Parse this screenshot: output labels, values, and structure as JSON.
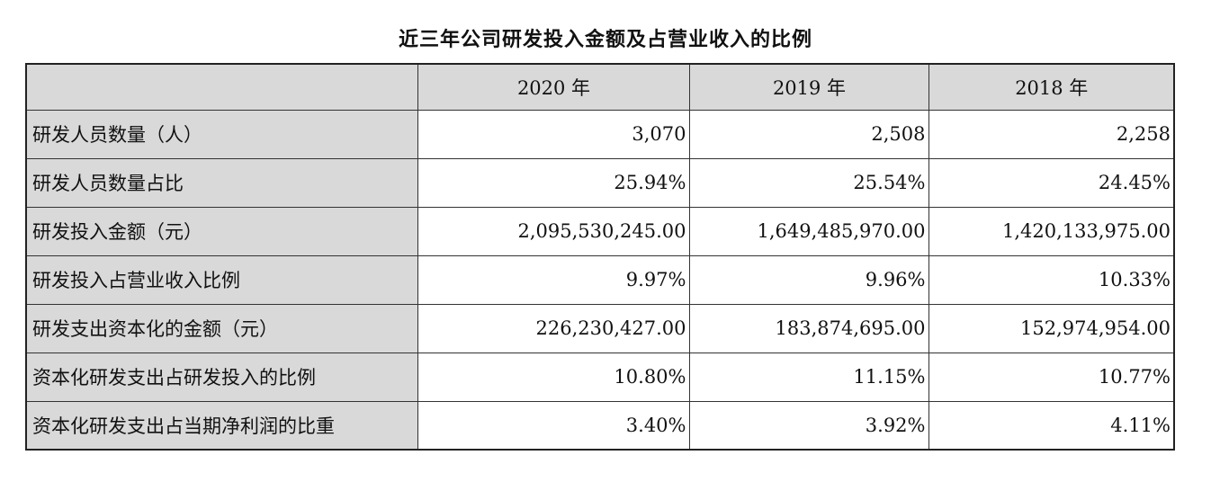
{
  "title": "近三年公司研发投入金额及占营业收入的比例",
  "table": {
    "headers": [
      "",
      "2020 年",
      "2019 年",
      "2018 年"
    ],
    "rows": [
      {
        "label": "研发人员数量（人）",
        "values": [
          "3,070",
          "2,508",
          "2,258"
        ]
      },
      {
        "label": "研发人员数量占比",
        "values": [
          "25.94%",
          "25.54%",
          "24.45%"
        ]
      },
      {
        "label": "研发投入金额（元）",
        "values": [
          "2,095,530,245.00",
          "1,649,485,970.00",
          "1,420,133,975.00"
        ]
      },
      {
        "label": "研发投入占营业收入比例",
        "values": [
          "9.97%",
          "9.96%",
          "10.33%"
        ]
      },
      {
        "label": "研发支出资本化的金额（元）",
        "values": [
          "226,230,427.00",
          "183,874,695.00",
          "152,974,954.00"
        ]
      },
      {
        "label": "资本化研发支出占研发投入的比例",
        "values": [
          "10.80%",
          "11.15%",
          "10.77%"
        ]
      },
      {
        "label": "资本化研发支出占当期净利润的比重",
        "values": [
          "3.40%",
          "3.92%",
          "4.11%"
        ]
      }
    ]
  }
}
